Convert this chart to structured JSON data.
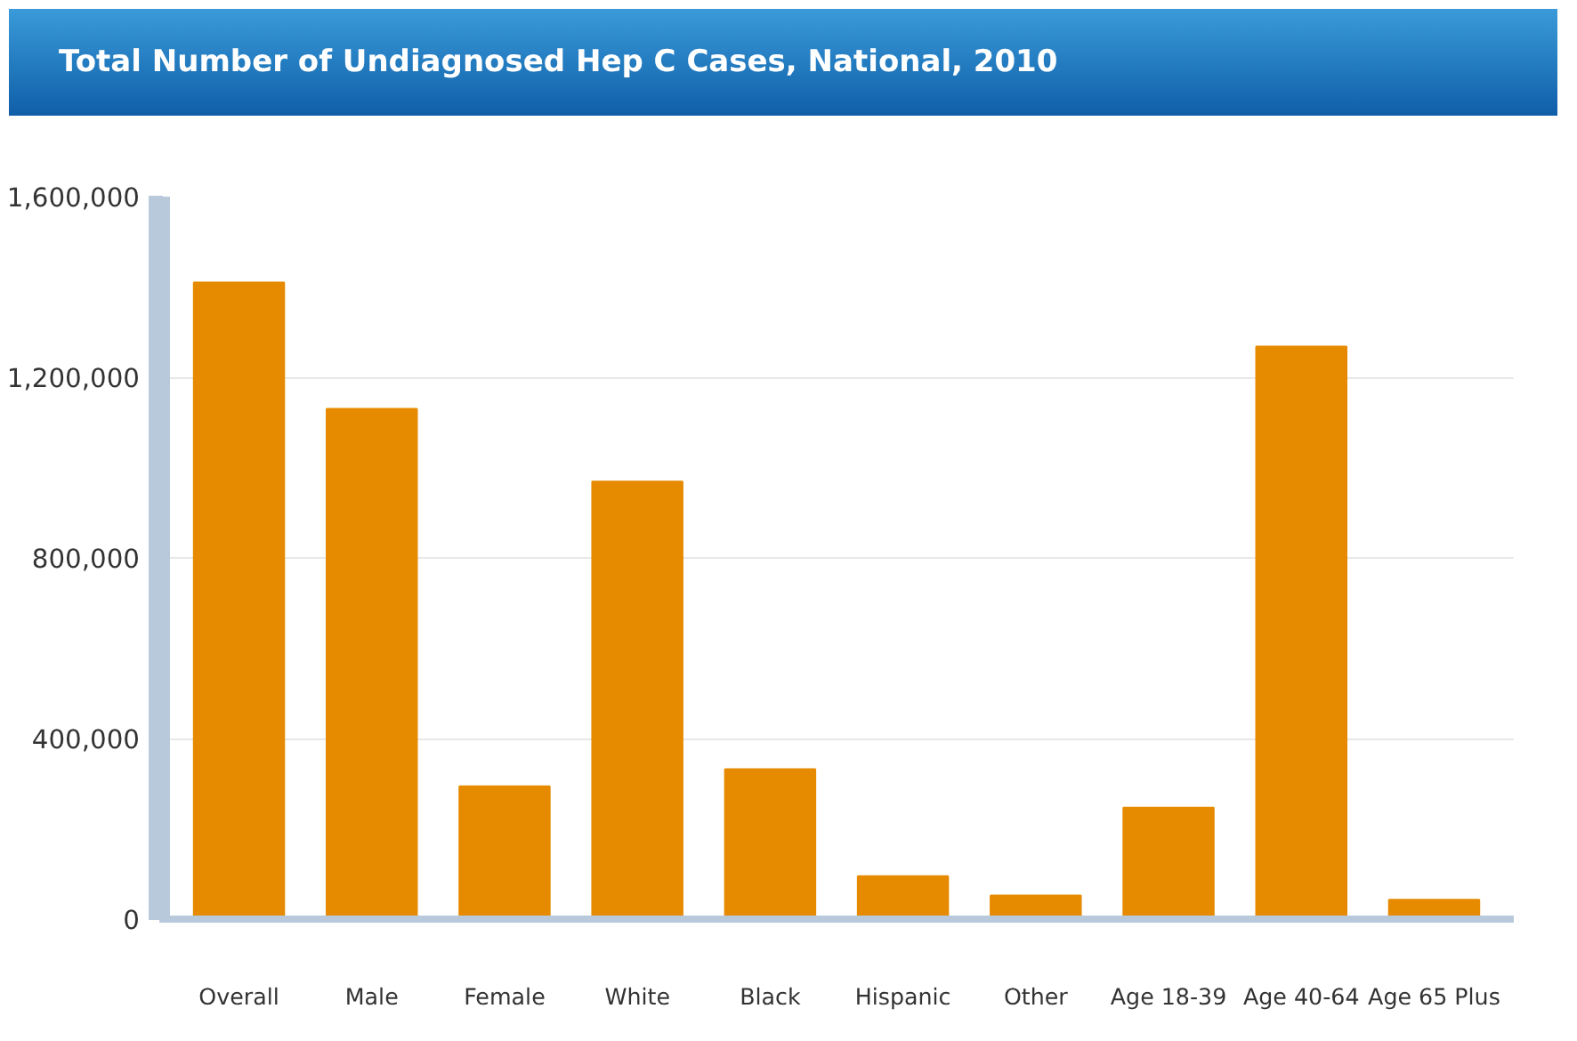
{
  "chart_data": {
    "type": "bar",
    "title": "Total Number of Undiagnosed Hep C Cases, National, 2010",
    "categories": [
      "Overall",
      "Male",
      "Female",
      "White",
      "Black",
      "Hispanic",
      "Other",
      "Age 18-39",
      "Age 40-64",
      "Age 65 Plus"
    ],
    "values": [
      1410000,
      1130000,
      294000,
      969000,
      332000,
      95000,
      52000,
      247000,
      1268000,
      43000
    ],
    "color": "#e68a00",
    "ylim": [
      0,
      1600000
    ],
    "yticks": [
      {
        "value": 0,
        "label": "0"
      },
      {
        "value": 400000,
        "label": "400,000"
      },
      {
        "value": 800000,
        "label": "800,000"
      },
      {
        "value": 1200000,
        "label": "1,200,000"
      },
      {
        "value": 1600000,
        "label": "1,600,000"
      }
    ],
    "grid": "y"
  }
}
